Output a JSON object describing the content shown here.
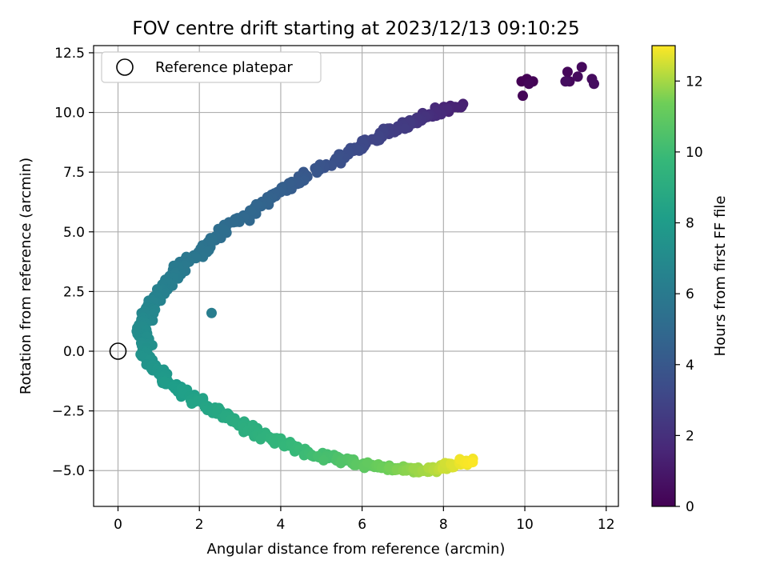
{
  "chart_data": {
    "type": "scatter",
    "title": "FOV centre drift starting at 2023/12/13 09:10:25",
    "xlabel": "Angular distance from reference (arcmin)",
    "ylabel": "Rotation from reference (arcmin)",
    "xlim": [
      -0.6,
      12.3
    ],
    "ylim": [
      -6.5,
      12.8
    ],
    "grid": true,
    "x_ticks": [
      0,
      2,
      4,
      6,
      8,
      10,
      12
    ],
    "x_tick_labels": [
      "0",
      "2",
      "4",
      "6",
      "8",
      "10",
      "12"
    ],
    "y_ticks": [
      -5.0,
      -2.5,
      0.0,
      2.5,
      5.0,
      7.5,
      10.0,
      12.5
    ],
    "y_tick_labels": [
      "−5.0",
      "−2.5",
      "0.0",
      "2.5",
      "5.0",
      "7.5",
      "10.0",
      "12.5"
    ],
    "legend": {
      "position": "top-left",
      "entries": [
        "Reference platepar"
      ]
    },
    "reference_point": {
      "x": 0,
      "y": 0
    },
    "colorbar": {
      "label": "Hours from first FF file",
      "colormap": "viridis",
      "range": [
        0,
        13
      ],
      "ticks": [
        0,
        2,
        4,
        6,
        8,
        10,
        12
      ],
      "tick_labels": [
        "0",
        "2",
        "4",
        "6",
        "8",
        "10",
        "12"
      ]
    },
    "trend_path": [
      {
        "h": 0.0,
        "x": 10.0,
        "y": 11.2
      },
      {
        "h": 0.8,
        "x": 11.6,
        "y": 11.4
      },
      {
        "h": 1.3,
        "x": 8.4,
        "y": 10.3
      },
      {
        "h": 2.5,
        "x": 7.0,
        "y": 9.5
      },
      {
        "h": 3.5,
        "x": 5.5,
        "y": 8.2
      },
      {
        "h": 4.5,
        "x": 3.8,
        "y": 6.5
      },
      {
        "h": 5.2,
        "x": 2.6,
        "y": 5.0
      },
      {
        "h": 6.0,
        "x": 1.5,
        "y": 3.4
      },
      {
        "h": 6.5,
        "x": 0.9,
        "y": 2.2
      },
      {
        "h": 7.0,
        "x": 0.55,
        "y": 1.0
      },
      {
        "h": 7.5,
        "x": 0.7,
        "y": -0.4
      },
      {
        "h": 8.0,
        "x": 1.3,
        "y": -1.4
      },
      {
        "h": 8.6,
        "x": 2.3,
        "y": -2.4
      },
      {
        "h": 9.3,
        "x": 3.5,
        "y": -3.5
      },
      {
        "h": 10.0,
        "x": 4.8,
        "y": -4.3
      },
      {
        "h": 11.0,
        "x": 6.2,
        "y": -4.8
      },
      {
        "h": 12.0,
        "x": 7.6,
        "y": -5.0
      },
      {
        "h": 13.0,
        "x": 8.7,
        "y": -4.6
      }
    ],
    "points": [
      {
        "h": 0.0,
        "x": 9.92,
        "y": 11.3
      },
      {
        "h": 0.05,
        "x": 10.05,
        "y": 11.4
      },
      {
        "h": 0.1,
        "x": 10.2,
        "y": 11.3
      },
      {
        "h": 0.15,
        "x": 9.95,
        "y": 10.7
      },
      {
        "h": 0.2,
        "x": 10.1,
        "y": 11.2
      },
      {
        "h": 0.25,
        "x": 11.05,
        "y": 11.7
      },
      {
        "h": 0.3,
        "x": 11.1,
        "y": 11.3
      },
      {
        "h": 0.35,
        "x": 11.4,
        "y": 11.9
      },
      {
        "h": 0.4,
        "x": 11.3,
        "y": 11.5
      },
      {
        "h": 0.45,
        "x": 11.65,
        "y": 11.4
      },
      {
        "h": 0.5,
        "x": 11.7,
        "y": 11.2
      },
      {
        "h": 0.55,
        "x": 11.0,
        "y": 11.3
      },
      {
        "h": 6.2,
        "x": 2.3,
        "y": 1.6
      }
    ]
  }
}
